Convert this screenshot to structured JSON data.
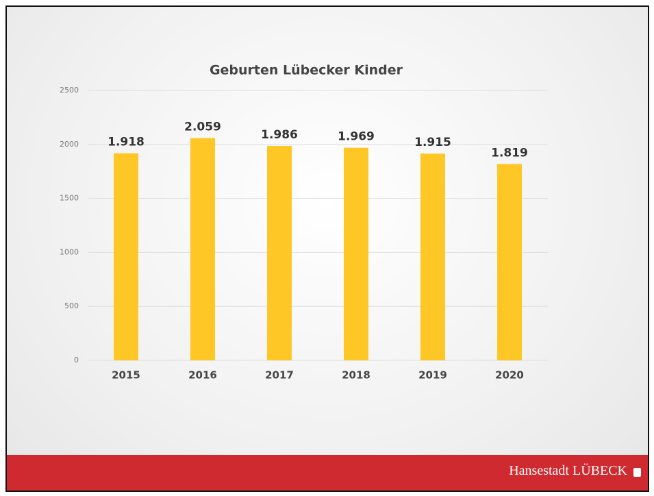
{
  "chart_data": {
    "type": "bar",
    "title": "Geburten Lübecker Kinder",
    "categories": [
      "2015",
      "2016",
      "2017",
      "2018",
      "2019",
      "2020"
    ],
    "values": [
      1918,
      2059,
      1986,
      1969,
      1915,
      1819
    ],
    "value_labels": [
      "1.918",
      "2.059",
      "1.986",
      "1.969",
      "1.915",
      "1.819"
    ],
    "color": "#ffc726",
    "ylim": [
      0,
      2500
    ],
    "yticks": [
      0,
      500,
      1000,
      1500,
      2000,
      2500
    ],
    "grid": true
  },
  "footer": {
    "text": "Hansestadt LÜBECK"
  }
}
